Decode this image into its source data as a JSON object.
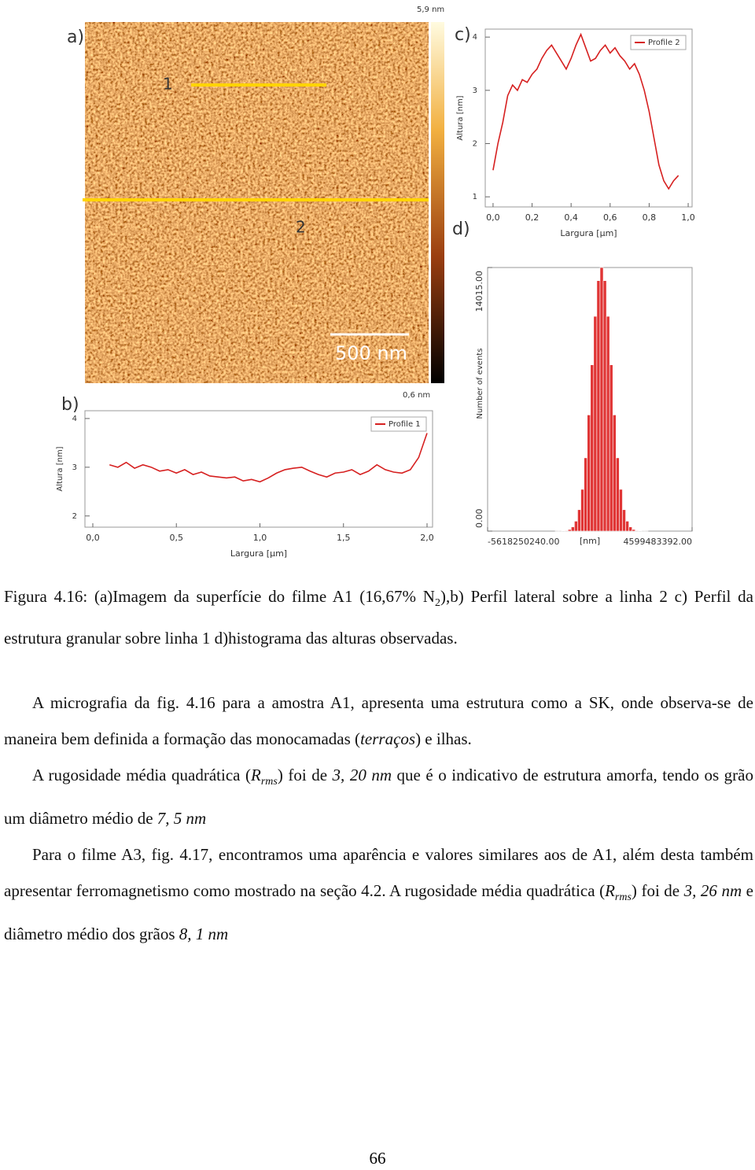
{
  "image": {
    "label": "a)",
    "line_labels": [
      "1",
      "2"
    ],
    "scale_bar": "500 nm",
    "colorbar": {
      "max_label": "5,9 nm",
      "min_label": "0,6 nm"
    }
  },
  "chart_data": [
    {
      "type": "line",
      "label": "b)",
      "x_label": "Largura [µm]",
      "y_label": "Altura [nm]",
      "legend": "upper right",
      "xlim": [
        -0.047,
        2.033
      ],
      "ylim": [
        1.77,
        4.16
      ],
      "xticks": [
        {
          "value": 0,
          "label": "0,0"
        },
        {
          "value": 0.5,
          "label": "0,5"
        },
        {
          "value": 1,
          "label": "1,0"
        },
        {
          "value": 1.5,
          "label": "1,5"
        },
        {
          "value": 2,
          "label": "2,0"
        }
      ],
      "yticks": [
        2,
        3,
        4
      ],
      "x": [
        0.1,
        0.15,
        0.2,
        0.25,
        0.3,
        0.35,
        0.4,
        0.45,
        0.5,
        0.55,
        0.6,
        0.65,
        0.7,
        0.75,
        0.8,
        0.85,
        0.9,
        0.95,
        1.0,
        1.05,
        1.1,
        1.15,
        1.2,
        1.25,
        1.3,
        1.35,
        1.4,
        1.45,
        1.5,
        1.55,
        1.6,
        1.65,
        1.7,
        1.75,
        1.8,
        1.85,
        1.9,
        1.95,
        2.0
      ],
      "series": [
        {
          "name": "Profile 1",
          "color": "#d62020",
          "values": [
            3.05,
            3.0,
            3.1,
            2.98,
            3.05,
            3.0,
            2.92,
            2.95,
            2.88,
            2.95,
            2.85,
            2.9,
            2.82,
            2.8,
            2.78,
            2.8,
            2.72,
            2.75,
            2.7,
            2.78,
            2.88,
            2.95,
            2.98,
            3.0,
            2.92,
            2.85,
            2.8,
            2.88,
            2.9,
            2.95,
            2.85,
            2.92,
            3.05,
            2.95,
            2.9,
            2.88,
            2.95,
            3.2,
            3.7
          ]
        }
      ]
    },
    {
      "type": "line",
      "label": "c)",
      "x_label": "Largura [µm]",
      "y_label": "Altura [nm]",
      "legend": "upper right",
      "xlim": [
        -0.04,
        1.02
      ],
      "ylim": [
        0.81,
        4.15
      ],
      "xticks": [
        {
          "value": 0,
          "label": "0,0"
        },
        {
          "value": 0.2,
          "label": "0,2"
        },
        {
          "value": 0.4,
          "label": "0,4"
        },
        {
          "value": 0.6,
          "label": "0,6"
        },
        {
          "value": 0.8,
          "label": "0,8"
        },
        {
          "value": 1,
          "label": "1,0"
        }
      ],
      "yticks": [
        1,
        2,
        3,
        4
      ],
      "x": [
        0,
        0.025,
        0.05,
        0.075,
        0.1,
        0.125,
        0.15,
        0.175,
        0.2,
        0.225,
        0.25,
        0.275,
        0.3,
        0.325,
        0.35,
        0.375,
        0.4,
        0.425,
        0.45,
        0.475,
        0.5,
        0.525,
        0.55,
        0.575,
        0.6,
        0.625,
        0.65,
        0.675,
        0.7,
        0.725,
        0.75,
        0.775,
        0.8,
        0.825,
        0.85,
        0.875,
        0.9,
        0.925,
        0.95
      ],
      "series": [
        {
          "name": "Profile 2",
          "color": "#d62020",
          "values": [
            1.5,
            2.0,
            2.4,
            2.9,
            3.1,
            3.0,
            3.2,
            3.15,
            3.3,
            3.4,
            3.6,
            3.75,
            3.85,
            3.7,
            3.55,
            3.4,
            3.6,
            3.85,
            4.05,
            3.8,
            3.55,
            3.6,
            3.75,
            3.85,
            3.7,
            3.8,
            3.65,
            3.55,
            3.4,
            3.5,
            3.3,
            3.0,
            2.6,
            2.1,
            1.6,
            1.3,
            1.15,
            1.3,
            1.4
          ]
        }
      ]
    },
    {
      "type": "histogram",
      "label": "d)",
      "x_label": "[nm]",
      "y_label": "Number of events",
      "color": "#e03535",
      "xlim": [
        -5618250240,
        4599483392
      ],
      "ylim": [
        0,
        14015
      ],
      "xticks": [
        {
          "value": -5618250240,
          "label": "-5618250240.00"
        },
        {
          "value": 4599483392,
          "label": "4599483392.00"
        }
      ],
      "yticks": [
        {
          "value": 0,
          "label": "0.00"
        },
        {
          "value": 14015,
          "label": "14015.00"
        }
      ],
      "bins": [
        -2400000000,
        -2240000000,
        -2080000000,
        -1920000000,
        -1760000000,
        -1600000000,
        -1440000000,
        -1280000000,
        -1120000000,
        -960000000,
        -800000000,
        -640000000,
        -480000000,
        -320000000,
        -160000000,
        0,
        160000000,
        320000000,
        480000000,
        640000000,
        800000000,
        960000000,
        1120000000,
        1280000000,
        1440000000,
        1600000000,
        1760000000,
        1920000000,
        2080000000,
        2240000000,
        2400000000
      ],
      "values": [
        0,
        1,
        2,
        9,
        28,
        84,
        221,
        528,
        1138,
        2220,
        3895,
        6177,
        8841,
        11420,
        13316,
        14015,
        13316,
        11420,
        8841,
        6177,
        3895,
        2220,
        1138,
        528,
        221,
        84,
        28,
        9,
        2,
        1
      ]
    }
  ],
  "caption": [
    "Figura 4.16: (a)Imagem da superfície do filme A1 (16,67% N",
    "2",
    "),b) Perfil lateral sobre a linha 2 c) Perfil da estrutura granular sobre linha 1 d)histograma das alturas observadas."
  ],
  "paragraphs": [
    [
      "A micrografia da fig. 4.16 para a amostra A1, apresenta uma estrutura como a SK, onde observa-se de maneira bem definida a formação das monocamadas (",
      "terraços",
      ") e ilhas."
    ],
    [
      "A rugosidade média quadrática (",
      "R",
      "rms",
      ") foi de ",
      "3, 20 nm",
      " que é o indicativo de estrutura amorfa, tendo os grão um diâmetro médio de ",
      "7, 5 nm"
    ],
    [
      "Para o filme A3, fig. 4.17, encontramos uma aparência e valores similares aos de A1, além desta também apresentar ferromagnetismo como mostrado na seção 4.2. A rugosidade média quadrática (",
      "R",
      "rms",
      ") foi de ",
      "3, 26 nm",
      " e diâmetro médio dos grãos ",
      "8, 1 nm"
    ]
  ],
  "page_number": "66"
}
